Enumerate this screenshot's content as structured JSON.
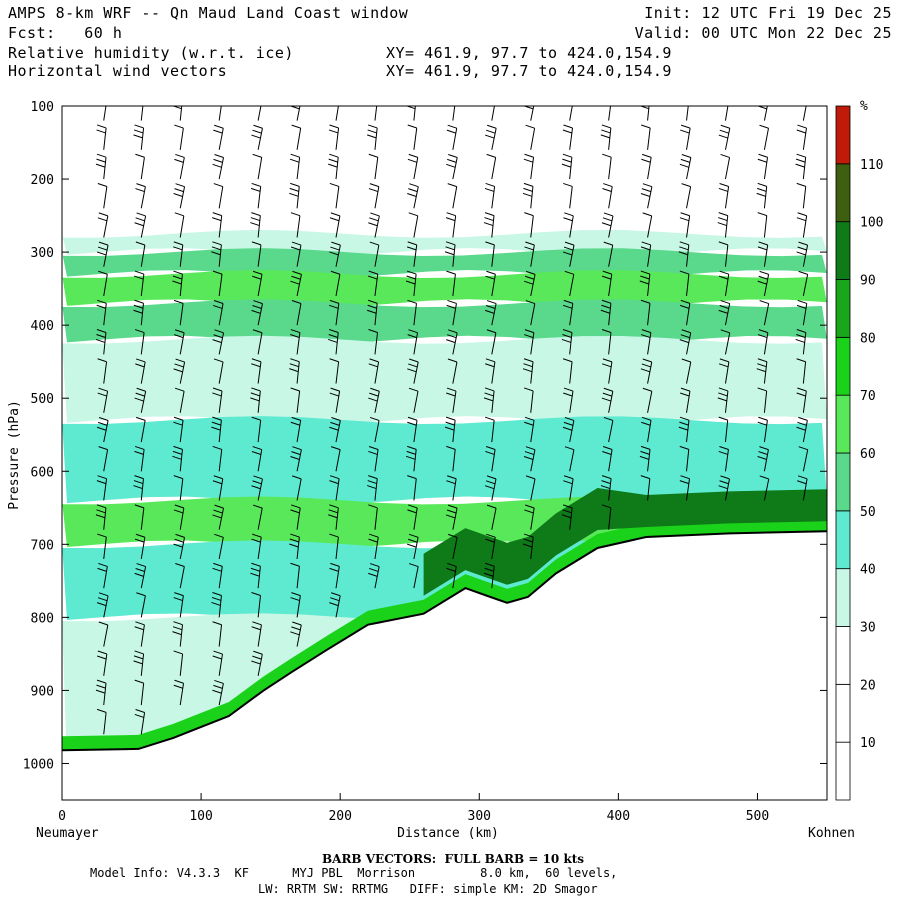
{
  "header": {
    "title": "AMPS 8-km WRF -- Qn Maud Land Coast window",
    "forecast": "Fcst:   60 h",
    "field1": "Relative humidity (w.r.t. ice)",
    "field2": "Horizontal wind vectors",
    "xy1": "XY= 461.9, 97.7 to 424.0,154.9",
    "xy2": "XY= 461.9, 97.7 to 424.0,154.9",
    "init": "Init: 12 UTC Fri 19 Dec 25",
    "valid": "Valid: 00 UTC Mon 22 Dec 25"
  },
  "footer": {
    "barb_note": "BARB VECTORS:  FULL BARB = 10 kts",
    "model_line1": "Model Info: V4.3.3  KF      MYJ PBL  Morrison         8.0 km,  60 levels,",
    "model_line2": "LW: RRTM SW: RRTMG   DIFF: simple KM: 2D Smagor"
  },
  "chart_data": {
    "type": "heatmap",
    "title": "Relative humidity (w.r.t. ice) cross-section with horizontal wind vectors",
    "xlabel": "Distance (km)",
    "ylabel": "Pressure (hPa)",
    "x_start_label": "Neumayer",
    "x_end_label": "Kohnen",
    "xlim": [
      0,
      550
    ],
    "ylim": [
      1050,
      100
    ],
    "x_ticks": [
      0,
      100,
      200,
      300,
      400,
      500
    ],
    "y_ticks": [
      100,
      200,
      300,
      400,
      500,
      600,
      700,
      800,
      900,
      1000
    ],
    "colorbar": {
      "unit": "%",
      "levels": [
        10,
        20,
        30,
        40,
        50,
        60,
        70,
        80,
        90,
        100,
        110
      ],
      "colors": [
        "#ffffff",
        "#ffffff",
        "#ffffff",
        "#c8f7e6",
        "#5eead0",
        "#5ad88c",
        "#58e85a",
        "#1bd21b",
        "#1aa61a",
        "#0e7a18",
        "#3e5e10",
        "#c01a0a"
      ]
    },
    "terrain_hPa": [
      [
        0,
        982
      ],
      [
        55,
        980
      ],
      [
        80,
        965
      ],
      [
        100,
        950
      ],
      [
        120,
        935
      ],
      [
        145,
        900
      ],
      [
        165,
        875
      ],
      [
        190,
        845
      ],
      [
        220,
        810
      ],
      [
        260,
        795
      ],
      [
        290,
        760
      ],
      [
        305,
        770
      ],
      [
        320,
        780
      ],
      [
        335,
        772
      ],
      [
        355,
        740
      ],
      [
        385,
        705
      ],
      [
        420,
        690
      ],
      [
        480,
        685
      ],
      [
        550,
        682
      ]
    ],
    "rh_layers": [
      {
        "top": 275,
        "bottom": 300,
        "rh": 35
      },
      {
        "top": 300,
        "bottom": 330,
        "rh": 55
      },
      {
        "top": 330,
        "bottom": 370,
        "rh": 65
      },
      {
        "top": 370,
        "bottom": 420,
        "rh": 50
      },
      {
        "top": 420,
        "bottom": 530,
        "rh": 38
      },
      {
        "top": 530,
        "bottom": 640,
        "rh": 48
      },
      {
        "top": 640,
        "bottom": 700,
        "rh": 62
      },
      {
        "top": 700,
        "bottom": 800,
        "rh": 48
      },
      {
        "top": 800,
        "bottom": 1000,
        "rh": 37
      }
    ],
    "moist_core_rh": 95,
    "barb_columns_km": [
      30,
      57,
      85,
      113,
      141,
      169,
      197,
      225,
      253,
      281,
      309,
      337,
      365,
      393,
      421,
      449,
      477,
      505,
      533
    ],
    "barb_levels_hPa": [
      120,
      160,
      200,
      240,
      280,
      320,
      360,
      400,
      440,
      480,
      520,
      560,
      600,
      640,
      680,
      720,
      760,
      800,
      840,
      880,
      920,
      960
    ]
  }
}
